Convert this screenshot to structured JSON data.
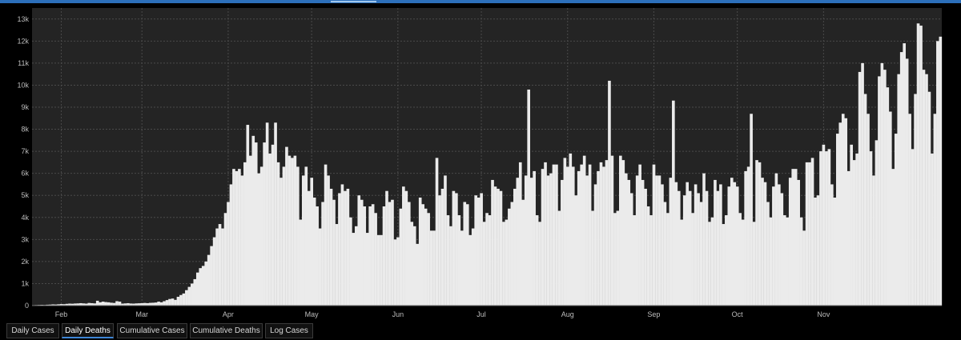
{
  "colors": {
    "background": "#000000",
    "plot_background": "#242424",
    "bar": "#ebebeb",
    "grid": "#4a4a4a",
    "tick_text": "#bdbdbd",
    "accent": "#2c6fba",
    "active_tab_underline": "#3e86d6"
  },
  "tabs": [
    {
      "label": "Daily Cases",
      "active": false
    },
    {
      "label": "Daily Deaths",
      "active": true
    },
    {
      "label": "Cumulative Cases",
      "active": false
    },
    {
      "label": "Cumulative Deaths",
      "active": false
    },
    {
      "label": "Log Cases",
      "active": false
    }
  ],
  "chart_data": {
    "type": "bar",
    "title": "",
    "xlabel": "",
    "ylabel": "",
    "x_start": "2020-01-22",
    "x_tick_labels": [
      {
        "label": "Feb",
        "date": "2020-02-01"
      },
      {
        "label": "Mar",
        "date": "2020-03-01"
      },
      {
        "label": "Apr",
        "date": "2020-04-01"
      },
      {
        "label": "May",
        "date": "2020-05-01"
      },
      {
        "label": "Jun",
        "date": "2020-06-01"
      },
      {
        "label": "Jul",
        "date": "2020-07-01"
      },
      {
        "label": "Aug",
        "date": "2020-08-01"
      },
      {
        "label": "Sep",
        "date": "2020-09-01"
      },
      {
        "label": "Oct",
        "date": "2020-10-01"
      },
      {
        "label": "Nov",
        "date": "2020-11-01"
      }
    ],
    "y_tick_labels": [
      "0",
      "1k",
      "2k",
      "3k",
      "4k",
      "5k",
      "6k",
      "7k",
      "8k",
      "9k",
      "10k",
      "11k",
      "12k",
      "13k"
    ],
    "ylim": [
      0,
      13500
    ],
    "grid": true,
    "values": [
      20,
      25,
      30,
      35,
      30,
      40,
      45,
      55,
      50,
      60,
      70,
      65,
      80,
      90,
      85,
      95,
      100,
      110,
      100,
      90,
      120,
      110,
      100,
      220,
      150,
      180,
      160,
      150,
      130,
      120,
      200,
      180,
      90,
      100,
      110,
      95,
      90,
      100,
      105,
      110,
      120,
      110,
      125,
      130,
      140,
      180,
      150,
      200,
      250,
      300,
      320,
      260,
      400,
      480,
      550,
      700,
      850,
      1000,
      1200,
      1500,
      1700,
      1800,
      2000,
      2300,
      2700,
      3100,
      3500,
      3700,
      3500,
      4200,
      4700,
      5500,
      6200,
      6100,
      6200,
      5900,
      6500,
      8200,
      6800,
      7700,
      7400,
      6000,
      6300,
      7400,
      8300,
      6900,
      7300,
      8300,
      6500,
      5800,
      6300,
      7200,
      6800,
      6700,
      6800,
      6300,
      3900,
      5900,
      6300,
      5200,
      5800,
      4900,
      4500,
      3500,
      4700,
      6400,
      5900,
      5300,
      4800,
      3700,
      5100,
      5500,
      5200,
      5300,
      4000,
      3300,
      3600,
      5000,
      4800,
      4500,
      3300,
      4500,
      4600,
      4200,
      3200,
      3200,
      4500,
      5200,
      4700,
      4800,
      3000,
      3100,
      4400,
      5400,
      5200,
      4700,
      3800,
      3600,
      2800,
      4900,
      4600,
      4400,
      4200,
      3400,
      3400,
      6700,
      5000,
      5300,
      5900,
      4100,
      3600,
      5200,
      5100,
      4100,
      3400,
      4700,
      4600,
      3200,
      3500,
      5000,
      4900,
      5100,
      3800,
      4200,
      4100,
      5700,
      5400,
      5300,
      5200,
      3800,
      3900,
      4400,
      4700,
      5300,
      5800,
      6500,
      4800,
      5900,
      9800,
      5800,
      6100,
      4100,
      3800,
      6200,
      6500,
      5900,
      6000,
      6400,
      6400,
      4300,
      5700,
      6700,
      6300,
      6900,
      6300,
      5000,
      6100,
      6400,
      6800,
      5900,
      6400,
      4300,
      5500,
      6100,
      6500,
      6300,
      6600,
      10200,
      6800,
      4200,
      4300,
      6800,
      6600,
      6000,
      5700,
      5100,
      4100,
      5900,
      6400,
      5700,
      5300,
      4500,
      4100,
      6400,
      5900,
      5900,
      5500,
      4700,
      4200,
      5800,
      9300,
      5600,
      5200,
      3900,
      5000,
      5600,
      5200,
      4200,
      5500,
      5100,
      4700,
      6000,
      5200,
      3800,
      4000,
      5700,
      5200,
      5500,
      3700,
      4100,
      5400,
      5800,
      5600,
      5400,
      4200,
      3900,
      6100,
      6300,
      8700,
      3800,
      6600,
      6500,
      5800,
      5600,
      4700,
      4000,
      5400,
      6000,
      5500,
      5100,
      4100,
      4000,
      5800,
      6200,
      6200,
      5700,
      4000,
      3400,
      6500,
      6500,
      6700,
      4900,
      5000,
      7000,
      7300,
      7000,
      7100,
      5500,
      4900,
      7800,
      8300,
      8700,
      8500,
      6100,
      7300,
      6600,
      6900,
      10600,
      11000,
      9600,
      8700,
      7000,
      5900,
      7500,
      10400,
      11000,
      10700,
      9900,
      8800,
      6200,
      7800,
      10500,
      11500,
      11900,
      11200,
      8700,
      7100,
      9600,
      12800,
      12700,
      10700,
      10500,
      9700,
      6900,
      8700,
      12000,
      12200
    ]
  }
}
